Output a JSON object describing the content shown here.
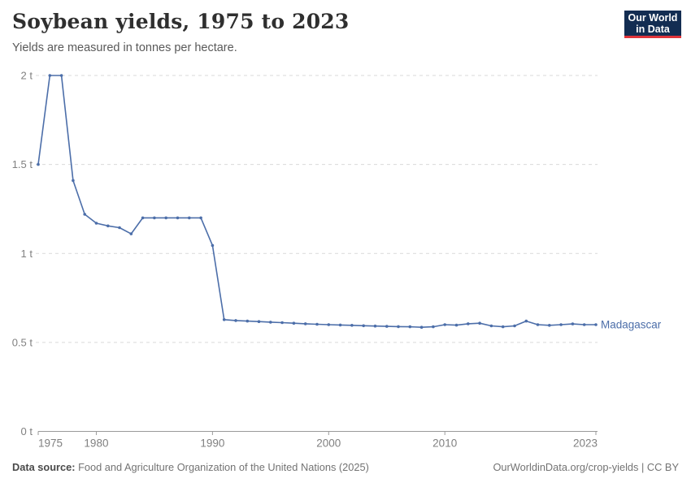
{
  "header": {
    "title": "Soybean yields, 1975 to 2023",
    "subtitle": "Yields are measured in tonnes per hectare.",
    "logo": {
      "line1": "Our World",
      "line2": "in Data"
    }
  },
  "chart_data": {
    "type": "line",
    "title": "Soybean yields, 1975 to 2023",
    "subtitle": "Yields are measured in tonnes per hectare.",
    "unit": "tonnes per hectare",
    "xlim": [
      1975,
      2023
    ],
    "ylim": [
      0,
      2
    ],
    "grid": "horizontal-dashed",
    "legend_position": "end-of-line-label",
    "xticks": [
      {
        "value": 1975,
        "label": "1975"
      },
      {
        "value": 1980,
        "label": "1980"
      },
      {
        "value": 1990,
        "label": "1990"
      },
      {
        "value": 2000,
        "label": "2000"
      },
      {
        "value": 2010,
        "label": "2010"
      },
      {
        "value": 2023,
        "label": "2023"
      }
    ],
    "yticks": [
      {
        "value": 0,
        "label": "0 t"
      },
      {
        "value": 0.5,
        "label": "0.5 t"
      },
      {
        "value": 1,
        "label": "1 t"
      },
      {
        "value": 1.5,
        "label": "1.5 t"
      },
      {
        "value": 2,
        "label": "2 t"
      }
    ],
    "x": [
      1975,
      1976,
      1977,
      1978,
      1979,
      1980,
      1981,
      1982,
      1983,
      1984,
      1985,
      1986,
      1987,
      1988,
      1989,
      1990,
      1991,
      1992,
      1993,
      1994,
      1995,
      1996,
      1997,
      1998,
      1999,
      2000,
      2001,
      2002,
      2003,
      2004,
      2005,
      2006,
      2007,
      2008,
      2009,
      2010,
      2011,
      2012,
      2013,
      2014,
      2015,
      2016,
      2017,
      2018,
      2019,
      2020,
      2021,
      2022,
      2023
    ],
    "series": [
      {
        "name": "Madagascar",
        "color": "#4C6EA9",
        "values": [
          1.5,
          2.0,
          2.0,
          1.41,
          1.22,
          1.17,
          1.155,
          1.145,
          1.11,
          1.2,
          1.2,
          1.2,
          1.2,
          1.2,
          1.2,
          1.045,
          0.628,
          0.623,
          0.62,
          0.617,
          0.614,
          0.611,
          0.608,
          0.605,
          0.602,
          0.6,
          0.598,
          0.596,
          0.594,
          0.592,
          0.59,
          0.589,
          0.588,
          0.585,
          0.588,
          0.6,
          0.597,
          0.605,
          0.608,
          0.593,
          0.588,
          0.593,
          0.62,
          0.6,
          0.596,
          0.6,
          0.604,
          0.6,
          0.6
        ]
      }
    ]
  },
  "colors": {
    "line": "#4C6EA9",
    "grid": "#d9d9d9",
    "axis": "#9a9a9a",
    "tick_text": "#808080"
  },
  "footer": {
    "source_label": "Data source:",
    "source_text": " Food and Agriculture Organization of the United Nations (2025)",
    "credit": "OurWorldinData.org/crop-yields | CC BY"
  }
}
